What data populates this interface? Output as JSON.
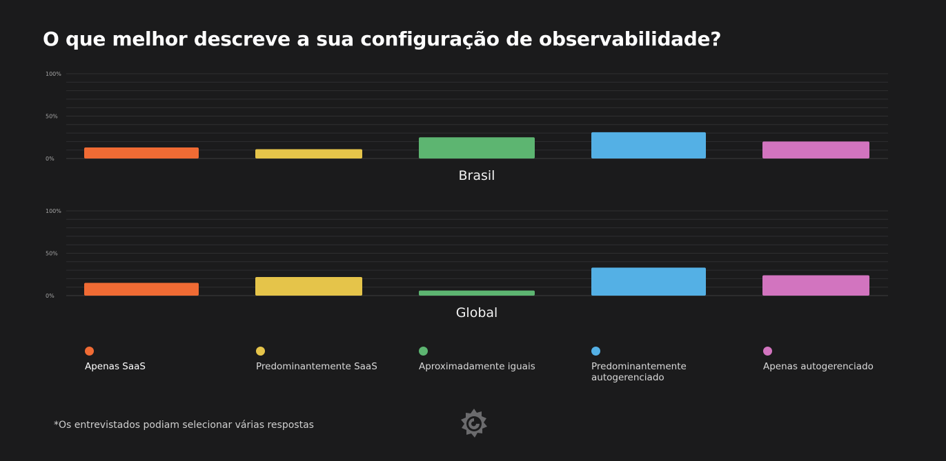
{
  "title": "O que melhor descreve a sua configuração de observabilidade?",
  "footnote": "*Os entrevistados podiam selecionar várias respostas",
  "chart_data": {
    "type": "bar",
    "ylim": [
      0,
      100
    ],
    "yticks": [
      "100%",
      "50%",
      "0%"
    ],
    "grid": true,
    "legend_position": "bottom",
    "categories": [
      "Apenas SaaS",
      "Predominantemente SaaS",
      "Aproximadamente iguais",
      "Predominantemente autogerenciado",
      "Apenas autogerenciado"
    ],
    "colors": [
      "#f06b34",
      "#e5c44a",
      "#5db571",
      "#54b0e5",
      "#d274bf"
    ],
    "groups": [
      {
        "label": "Brasil",
        "values": [
          13,
          11,
          25,
          31,
          20
        ]
      },
      {
        "label": "Global",
        "values": [
          15,
          22,
          6,
          33,
          24
        ]
      }
    ]
  },
  "legend": [
    {
      "label": "Apenas SaaS",
      "color": "#f06b34"
    },
    {
      "label": "Predominantemente SaaS",
      "color": "#e5c44a"
    },
    {
      "label": "Aproximadamente iguais",
      "color": "#5db571"
    },
    {
      "label": "Predominantemente autogerenciado",
      "color": "#54b0e5"
    },
    {
      "label": "Apenas autogerenciado",
      "color": "#d274bf"
    }
  ],
  "logo_icon": "grafana-logo-icon"
}
